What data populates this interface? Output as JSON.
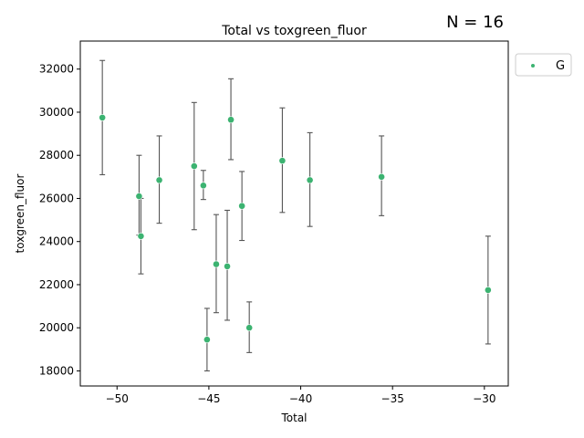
{
  "chart_data": {
    "type": "scatter",
    "title": "Total vs toxgreen_fluor",
    "annotation": "N = 16",
    "xlabel": "Total",
    "ylabel": "toxgreen_fluor",
    "xlim": [
      -52,
      -28.7
    ],
    "ylim": [
      17300,
      33300
    ],
    "xticks": [
      -50,
      -45,
      -40,
      -35,
      -30
    ],
    "xtick_labels": [
      "−50",
      "−45",
      "−40",
      "−35",
      "−30"
    ],
    "yticks": [
      18000,
      20000,
      22000,
      24000,
      26000,
      28000,
      30000,
      32000
    ],
    "ytick_labels": [
      "18000",
      "20000",
      "22000",
      "24000",
      "26000",
      "28000",
      "30000",
      "32000"
    ],
    "grid": false,
    "legend_placement": "outside-top-right",
    "series": [
      {
        "name": "G",
        "color": "#3cb371",
        "points": [
          {
            "x": -50.8,
            "y": 29750,
            "err_low": 27100,
            "err_high": 32400
          },
          {
            "x": -48.8,
            "y": 26100,
            "err_low": 24300,
            "err_high": 28000
          },
          {
            "x": -48.7,
            "y": 24250,
            "err_low": 22500,
            "err_high": 26000
          },
          {
            "x": -47.7,
            "y": 26850,
            "err_low": 24850,
            "err_high": 28900
          },
          {
            "x": -45.8,
            "y": 27500,
            "err_low": 24550,
            "err_high": 30450
          },
          {
            "x": -45.3,
            "y": 26600,
            "err_low": 25950,
            "err_high": 27300
          },
          {
            "x": -45.1,
            "y": 19450,
            "err_low": 18000,
            "err_high": 20900
          },
          {
            "x": -44.6,
            "y": 22950,
            "err_low": 20700,
            "err_high": 25250
          },
          {
            "x": -44.0,
            "y": 22850,
            "err_low": 20350,
            "err_high": 25450
          },
          {
            "x": -43.8,
            "y": 29650,
            "err_low": 27800,
            "err_high": 31550
          },
          {
            "x": -43.2,
            "y": 25650,
            "err_low": 24050,
            "err_high": 27250
          },
          {
            "x": -42.8,
            "y": 20000,
            "err_low": 18850,
            "err_high": 21200
          },
          {
            "x": -41.0,
            "y": 27750,
            "err_low": 25350,
            "err_high": 30200
          },
          {
            "x": -39.5,
            "y": 26850,
            "err_low": 24700,
            "err_high": 29050
          },
          {
            "x": -35.6,
            "y": 27000,
            "err_low": 25200,
            "err_high": 28900
          },
          {
            "x": -29.8,
            "y": 21750,
            "err_low": 19250,
            "err_high": 24250
          }
        ]
      }
    ]
  }
}
